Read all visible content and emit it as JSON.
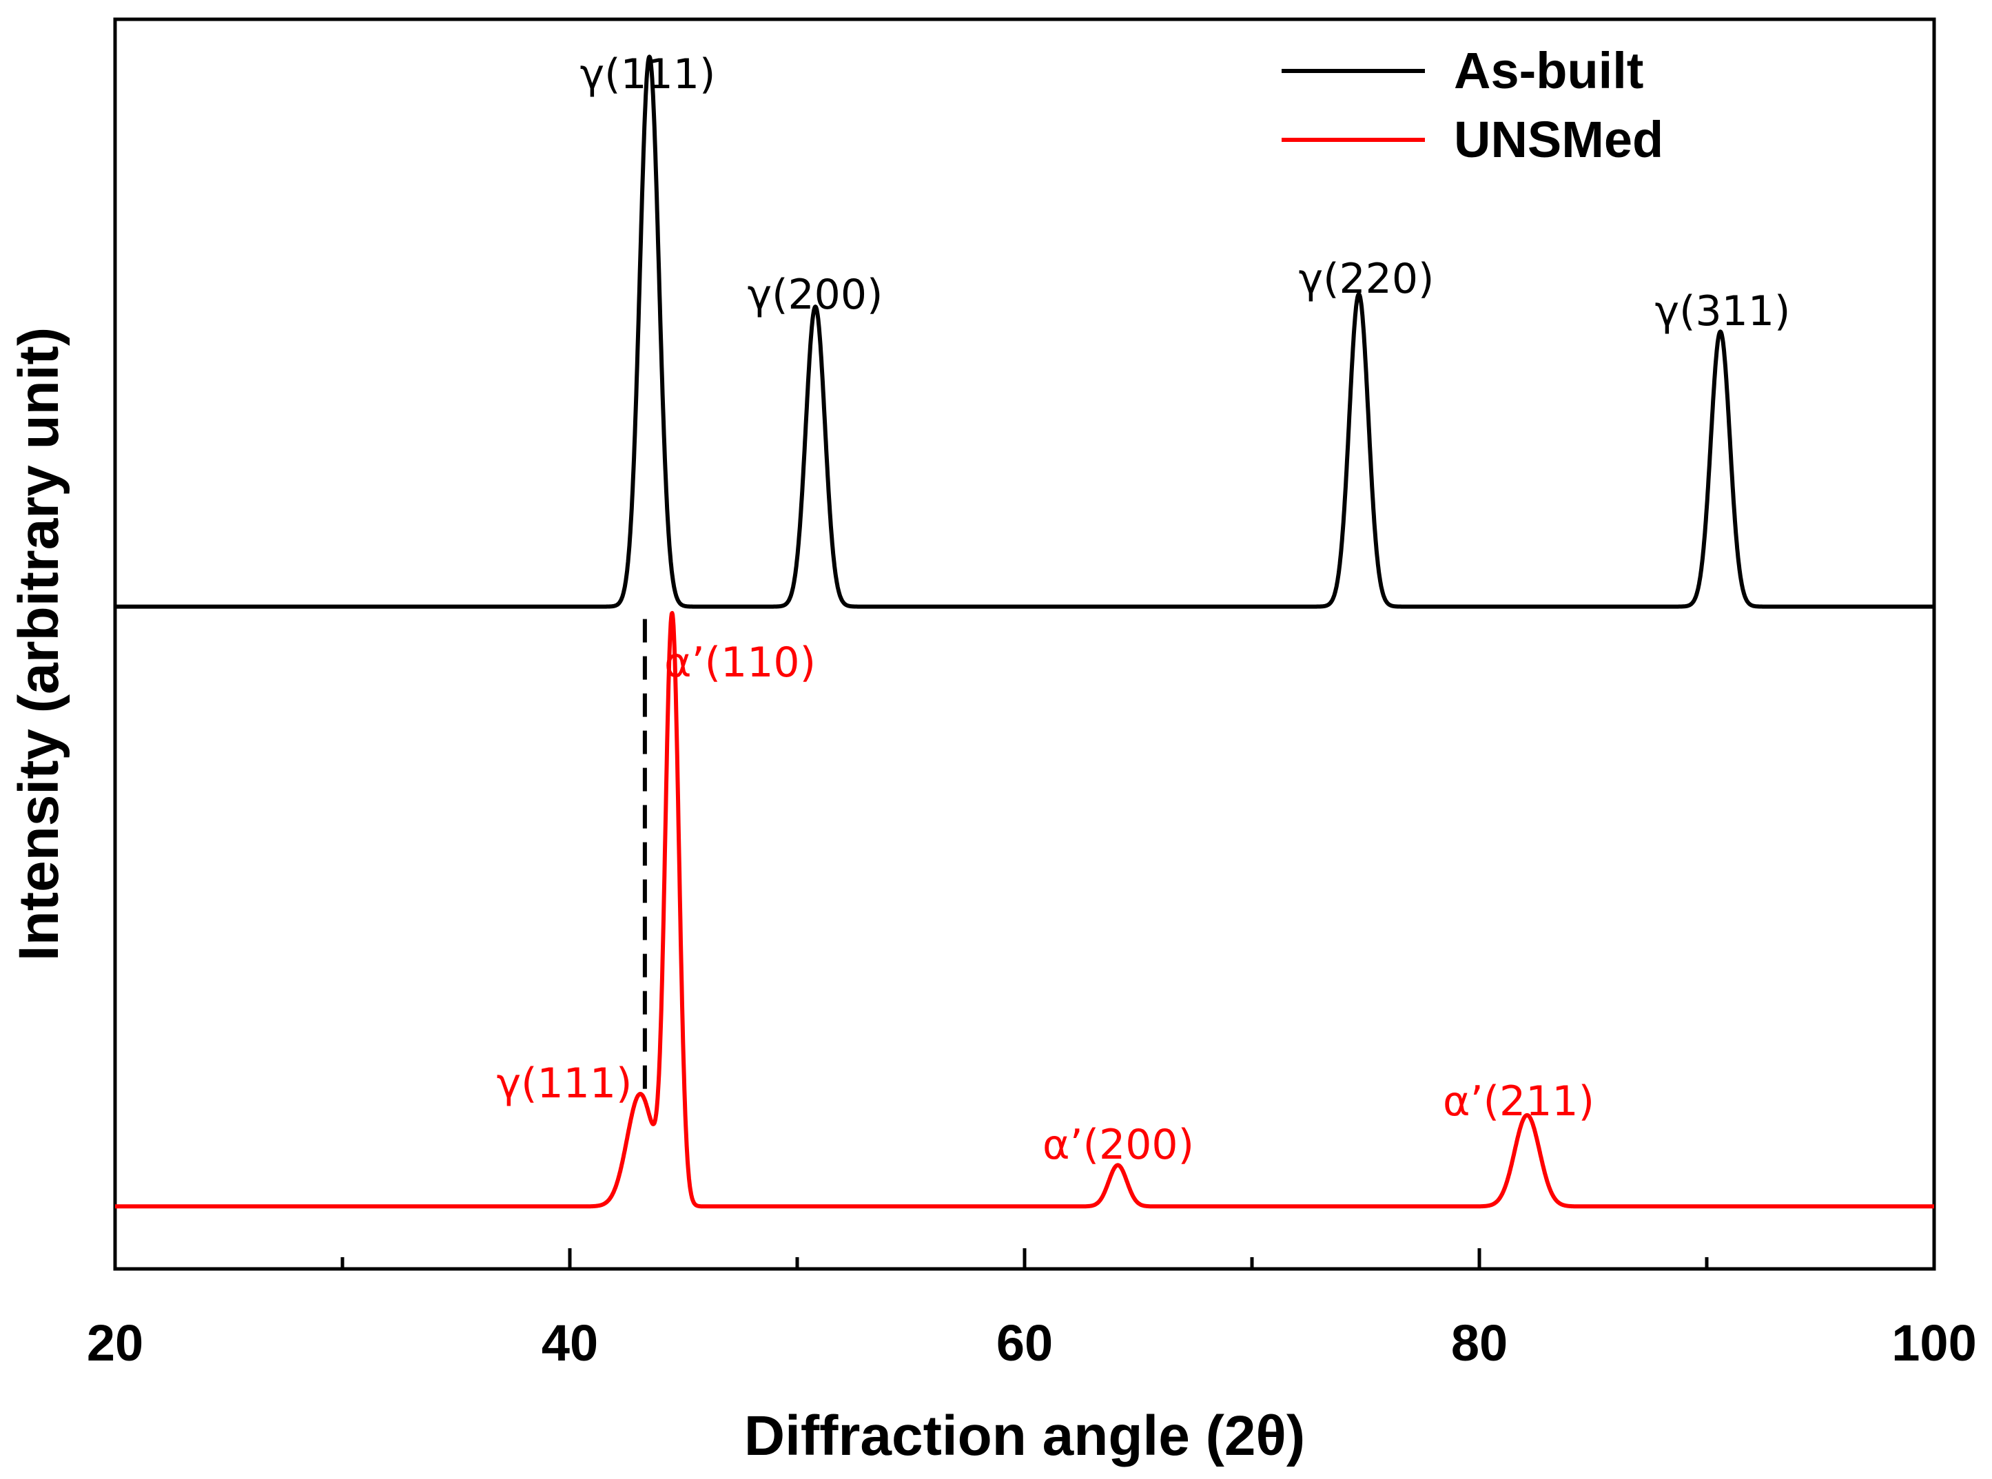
{
  "chart_data": {
    "type": "line",
    "title": "",
    "xlabel": "Diffraction angle (2θ)",
    "ylabel": "Intensity (arbitrary unit)",
    "xlim": [
      20,
      100
    ],
    "ylim": [
      0,
      1
    ],
    "x_ticks": [
      20,
      40,
      60,
      80,
      100
    ],
    "x_minor_ticks": [
      30,
      50,
      70,
      90
    ],
    "grid": false,
    "legend_position": "top-right",
    "reference_line": {
      "x": 43.3,
      "style": "dashed",
      "color": "#000000"
    },
    "series": [
      {
        "name": "As-built",
        "color": "#000000",
        "baseline": 0.53,
        "peaks": [
          {
            "x": 43.5,
            "height": 0.44,
            "width": 0.42,
            "label": "γ(111)"
          },
          {
            "x": 50.8,
            "height": 0.24,
            "width": 0.42,
            "label": "γ(200)"
          },
          {
            "x": 74.7,
            "height": 0.25,
            "width": 0.42,
            "label": "γ(220)"
          },
          {
            "x": 90.6,
            "height": 0.22,
            "width": 0.42,
            "label": "γ(311)"
          }
        ]
      },
      {
        "name": "UNSMed",
        "color": "#ff0000",
        "baseline": 0.05,
        "peaks": [
          {
            "x": 43.1,
            "height": 0.09,
            "width": 0.58,
            "label": "γ(111)"
          },
          {
            "x": 44.5,
            "height": 0.47,
            "width": 0.3,
            "label": "α’(110)"
          },
          {
            "x": 64.1,
            "height": 0.033,
            "width": 0.4,
            "label": "α’(200)"
          },
          {
            "x": 82.1,
            "height": 0.073,
            "width": 0.55,
            "label": "α’(211)"
          }
        ]
      }
    ]
  }
}
